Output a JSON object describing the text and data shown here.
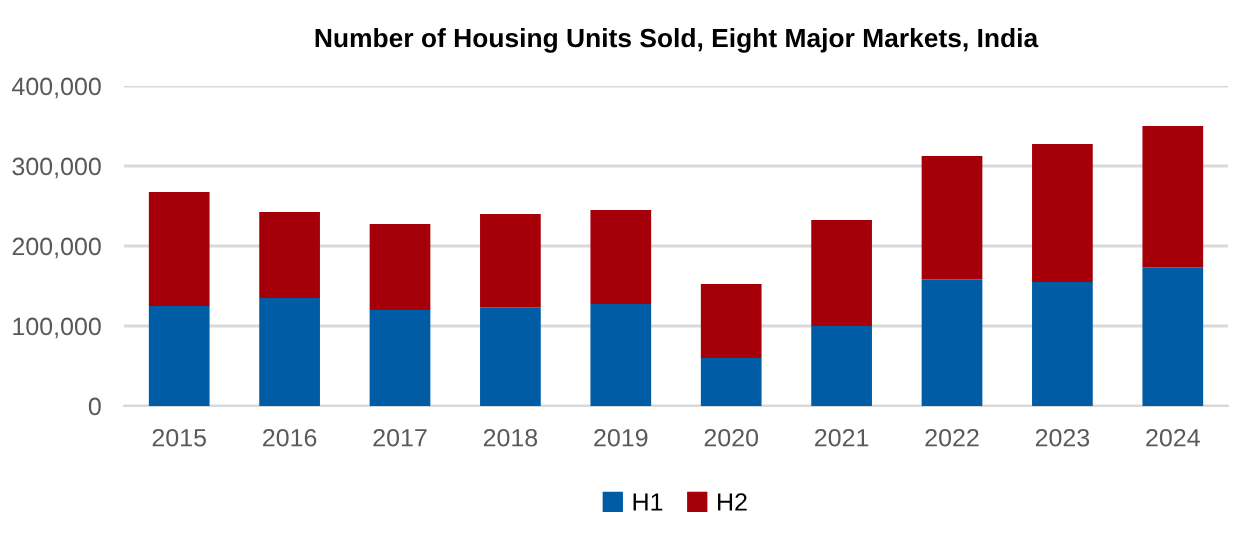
{
  "chart_data": {
    "type": "bar",
    "title": "Number of Housing Units Sold, Eight Major Markets, India",
    "categories": [
      "2015",
      "2016",
      "2017",
      "2018",
      "2019",
      "2020",
      "2021",
      "2022",
      "2023",
      "2024"
    ],
    "series": [
      {
        "name": "H1",
        "color": "#005ca4",
        "values": [
          125000,
          135000,
          120000,
          123000,
          127500,
          60000,
          100000,
          158000,
          155000,
          173000
        ]
      },
      {
        "name": "H2",
        "color": "#a50009",
        "values": [
          142500,
          107500,
          107500,
          117000,
          117500,
          92500,
          132500,
          154500,
          172500,
          177000
        ]
      }
    ],
    "stacked": true,
    "ylim": [
      0,
      400000
    ],
    "yticks": [
      {
        "value": 0,
        "label": "0"
      },
      {
        "value": 100000,
        "label": "100,000"
      },
      {
        "value": 200000,
        "label": "200,000"
      },
      {
        "value": 300000,
        "label": "300,000"
      },
      {
        "value": 400000,
        "label": "400,000"
      }
    ],
    "grid": "y",
    "legend": "bottom"
  }
}
